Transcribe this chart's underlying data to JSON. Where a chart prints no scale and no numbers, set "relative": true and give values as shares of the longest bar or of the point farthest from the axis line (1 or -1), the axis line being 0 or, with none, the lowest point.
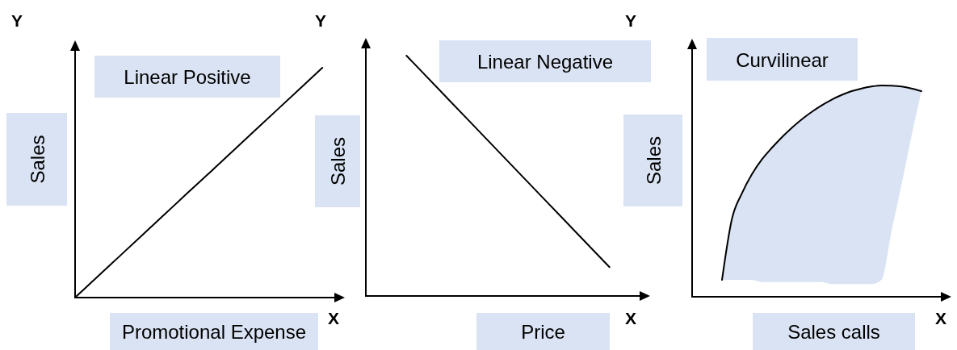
{
  "chart_data": [
    {
      "type": "line",
      "title": "Linear Positive",
      "xlabel": "Promotional Expense",
      "ylabel": "Sales",
      "annotations": [
        "Y",
        "X"
      ],
      "relative": true,
      "categories": [
        null,
        null,
        null,
        null,
        null,
        null,
        null,
        null,
        null,
        null,
        null,
        null,
        null
      ],
      "series": [
        {
          "color": "#000000",
          "values": [
            0,
            0.091,
            0.182,
            0.273,
            0.364,
            0.455,
            0.545,
            0.636,
            0.727,
            0.818,
            0.909,
            1,
            null
          ]
        }
      ]
    },
    {
      "type": "line",
      "title": "Linear Negative",
      "xlabel": "Price",
      "ylabel": "Sales",
      "annotations": [
        "Y",
        "X"
      ],
      "relative": true,
      "categories": [
        null,
        null,
        null,
        null,
        null,
        null,
        null,
        null
      ],
      "series": [
        {
          "color": "#000000",
          "values": [
            null,
            1,
            0.824,
            0.648,
            0.472,
            0.296,
            0.12,
            null
          ]
        }
      ]
    },
    {
      "type": "line",
      "title": "Curvilinear",
      "xlabel": "Sales calls",
      "ylabel": "Sales",
      "annotations": [
        "Y",
        "X"
      ],
      "relative": true,
      "categories": [
        null,
        null,
        null,
        null,
        null,
        null,
        null,
        null,
        null,
        null,
        null,
        null,
        null,
        null,
        null,
        null,
        null,
        null,
        null,
        null,
        null,
        null,
        null,
        null,
        null,
        null,
        null
      ],
      "series": [
        {
          "color": "#000000",
          "values": [
            null,
            null,
            null,
            0.08,
            0.37,
            0.49,
            0.58,
            0.65,
            0.705,
            0.755,
            0.8,
            0.84,
            0.875,
            0.906,
            0.933,
            0.955,
            0.973,
            0.986,
            0.995,
            1,
            0.999,
            0.995,
            0.986,
            0.973,
            null,
            null,
            null
          ],
          "lower": [
            null,
            null,
            null,
            0.08,
            0.08,
            0.08,
            0.08,
            0.07,
            0.07,
            0.07,
            0.07,
            0.07,
            0.07,
            0.07,
            0.06,
            0.06,
            0.06,
            0.06,
            0.06,
            0.08,
            0.31,
            0.53,
            0.76,
            0.973,
            null,
            null,
            null
          ],
          "upper": [
            null,
            null,
            null,
            0.08,
            0.37,
            0.49,
            0.58,
            0.65,
            0.705,
            0.755,
            0.8,
            0.84,
            0.875,
            0.906,
            0.933,
            0.955,
            0.973,
            0.986,
            0.995,
            1,
            0.999,
            0.995,
            0.986,
            0.973,
            null,
            null,
            null
          ]
        }
      ]
    }
  ]
}
